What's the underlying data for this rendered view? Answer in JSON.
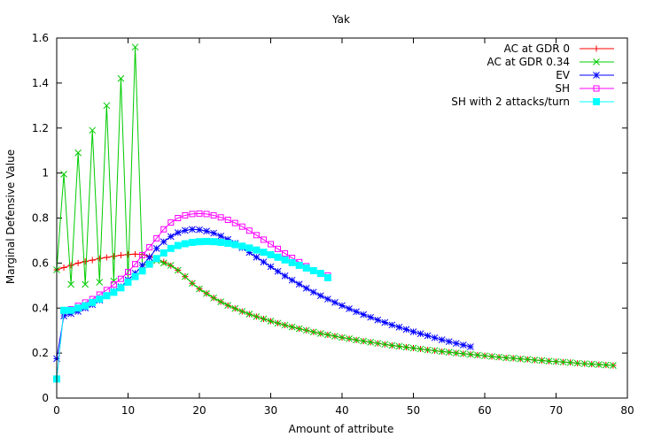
{
  "chart_data": {
    "type": "line",
    "title": "Yak",
    "xlabel": "Amount of attribute",
    "ylabel": "Marginal Defensive Value",
    "xlim": [
      0,
      80
    ],
    "ylim": [
      0,
      1.6
    ],
    "xticks": [
      0,
      10,
      20,
      30,
      40,
      50,
      60,
      70,
      80
    ],
    "yticks": [
      0,
      0.2,
      0.4,
      0.6,
      0.8,
      1,
      1.2,
      1.4,
      1.6
    ],
    "grid": false,
    "legend_position": "top-right",
    "series": [
      {
        "name": "AC at GDR 0",
        "color": "#ff0000",
        "marker": "plus",
        "x": [
          0,
          1,
          2,
          3,
          4,
          5,
          6,
          7,
          8,
          9,
          10,
          11,
          12,
          13,
          14,
          15,
          16,
          17,
          18,
          19,
          20,
          21,
          22,
          23,
          24,
          25,
          26,
          27,
          28,
          29,
          30,
          31,
          32,
          33,
          34,
          35,
          36,
          37,
          38,
          39,
          40,
          41,
          42,
          43,
          44,
          45,
          46,
          47,
          48,
          49,
          50,
          51,
          52,
          53,
          54,
          55,
          56,
          57,
          58,
          59,
          60,
          61,
          62,
          63,
          64,
          65,
          66,
          67,
          68,
          69,
          70,
          71,
          72,
          73,
          74,
          75,
          76,
          77,
          78
        ],
        "y": [
          0.57,
          0.58,
          0.59,
          0.6,
          0.607,
          0.613,
          0.62,
          0.625,
          0.63,
          0.635,
          0.638,
          0.64,
          0.638,
          0.63,
          0.618,
          0.605,
          0.588,
          0.568,
          0.54,
          0.51,
          0.485,
          0.465,
          0.445,
          0.428,
          0.412,
          0.398,
          0.385,
          0.373,
          0.362,
          0.352,
          0.342,
          0.333,
          0.324,
          0.316,
          0.308,
          0.301,
          0.294,
          0.287,
          0.281,
          0.275,
          0.269,
          0.264,
          0.258,
          0.253,
          0.248,
          0.243,
          0.239,
          0.234,
          0.23,
          0.226,
          0.222,
          0.218,
          0.214,
          0.211,
          0.207,
          0.204,
          0.2,
          0.197,
          0.194,
          0.191,
          0.188,
          0.185,
          0.182,
          0.179,
          0.177,
          0.174,
          0.172,
          0.169,
          0.167,
          0.164,
          0.162,
          0.16,
          0.158,
          0.155,
          0.153,
          0.151,
          0.149,
          0.147,
          0.145
        ]
      },
      {
        "name": "AC at GDR 0.34",
        "color": "#00cc00",
        "marker": "cross",
        "x": [
          0,
          1,
          2,
          3,
          4,
          5,
          6,
          7,
          8,
          9,
          10,
          11,
          12,
          13,
          14,
          15,
          16,
          17,
          18,
          19,
          20,
          21,
          22,
          23,
          24,
          25,
          26,
          27,
          28,
          29,
          30,
          31,
          32,
          33,
          34,
          35,
          36,
          37,
          38,
          39,
          40,
          41,
          42,
          43,
          44,
          45,
          46,
          47,
          48,
          49,
          50,
          51,
          52,
          53,
          54,
          55,
          56,
          57,
          58,
          59,
          60,
          61,
          62,
          63,
          64,
          65,
          66,
          67,
          68,
          69,
          70,
          71,
          72,
          73,
          74,
          75,
          76,
          77,
          78
        ],
        "y": [
          0.57,
          0.995,
          0.505,
          1.09,
          0.505,
          1.19,
          0.515,
          1.3,
          0.52,
          1.42,
          0.525,
          1.56,
          0.59,
          0.6,
          0.61,
          0.6,
          0.59,
          0.568,
          0.54,
          0.51,
          0.485,
          0.465,
          0.445,
          0.428,
          0.412,
          0.398,
          0.385,
          0.373,
          0.362,
          0.352,
          0.342,
          0.333,
          0.324,
          0.316,
          0.308,
          0.301,
          0.294,
          0.287,
          0.281,
          0.275,
          0.269,
          0.264,
          0.258,
          0.253,
          0.248,
          0.243,
          0.239,
          0.234,
          0.23,
          0.226,
          0.222,
          0.218,
          0.214,
          0.211,
          0.207,
          0.204,
          0.2,
          0.197,
          0.194,
          0.191,
          0.188,
          0.185,
          0.182,
          0.179,
          0.177,
          0.174,
          0.172,
          0.169,
          0.167,
          0.164,
          0.162,
          0.16,
          0.158,
          0.155,
          0.153,
          0.151,
          0.149,
          0.147,
          0.145
        ]
      },
      {
        "name": "EV",
        "color": "#0000ff",
        "marker": "asterisk",
        "x": [
          0,
          1,
          2,
          3,
          4,
          5,
          6,
          7,
          8,
          9,
          10,
          11,
          12,
          13,
          14,
          15,
          16,
          17,
          18,
          19,
          20,
          21,
          22,
          23,
          24,
          25,
          26,
          27,
          28,
          29,
          30,
          31,
          32,
          33,
          34,
          35,
          36,
          37,
          38,
          39,
          40,
          41,
          42,
          43,
          44,
          45,
          46,
          47,
          48,
          49,
          50,
          51,
          52,
          53,
          54,
          55,
          56,
          57,
          58
        ],
        "y": [
          0.175,
          0.365,
          0.375,
          0.385,
          0.4,
          0.415,
          0.435,
          0.455,
          0.475,
          0.495,
          0.525,
          0.555,
          0.59,
          0.625,
          0.665,
          0.695,
          0.718,
          0.735,
          0.745,
          0.75,
          0.748,
          0.742,
          0.733,
          0.72,
          0.705,
          0.688,
          0.668,
          0.647,
          0.626,
          0.605,
          0.584,
          0.563,
          0.543,
          0.524,
          0.506,
          0.488,
          0.471,
          0.455,
          0.44,
          0.425,
          0.411,
          0.397,
          0.384,
          0.371,
          0.359,
          0.347,
          0.336,
          0.325,
          0.315,
          0.305,
          0.295,
          0.286,
          0.277,
          0.268,
          0.259,
          0.251,
          0.243,
          0.236,
          0.228
        ]
      },
      {
        "name": "SH",
        "color": "#ff00ff",
        "marker": "square",
        "x": [
          0,
          1,
          2,
          3,
          4,
          5,
          6,
          7,
          8,
          9,
          10,
          11,
          12,
          13,
          14,
          15,
          16,
          17,
          18,
          19,
          20,
          21,
          22,
          23,
          24,
          25,
          26,
          27,
          28,
          29,
          30,
          31,
          32,
          33,
          34,
          35,
          36,
          37,
          38
        ],
        "y": [
          0.085,
          0.39,
          0.395,
          0.41,
          0.425,
          0.44,
          0.46,
          0.48,
          0.505,
          0.53,
          0.56,
          0.595,
          0.635,
          0.67,
          0.71,
          0.75,
          0.78,
          0.8,
          0.812,
          0.818,
          0.82,
          0.818,
          0.812,
          0.803,
          0.792,
          0.778,
          0.762,
          0.744,
          0.724,
          0.704,
          0.684,
          0.663,
          0.643,
          0.623,
          0.604,
          0.586,
          0.568,
          0.552,
          0.545
        ]
      },
      {
        "name": "SH with 2 attacks/turn",
        "color": "#00ffff",
        "marker": "filled-square",
        "x": [
          0,
          1,
          2,
          3,
          4,
          5,
          6,
          7,
          8,
          9,
          10,
          11,
          12,
          13,
          14,
          15,
          16,
          17,
          18,
          19,
          20,
          21,
          22,
          23,
          24,
          25,
          26,
          27,
          28,
          29,
          30,
          31,
          32,
          33,
          34,
          35,
          36,
          37,
          38
        ],
        "y": [
          0.085,
          0.39,
          0.39,
          0.4,
          0.41,
          0.425,
          0.44,
          0.455,
          0.47,
          0.49,
          0.515,
          0.54,
          0.565,
          0.595,
          0.62,
          0.645,
          0.665,
          0.678,
          0.686,
          0.692,
          0.695,
          0.696,
          0.695,
          0.692,
          0.688,
          0.682,
          0.675,
          0.667,
          0.658,
          0.648,
          0.637,
          0.626,
          0.614,
          0.602,
          0.59,
          0.578,
          0.566,
          0.554,
          0.535
        ]
      }
    ]
  }
}
